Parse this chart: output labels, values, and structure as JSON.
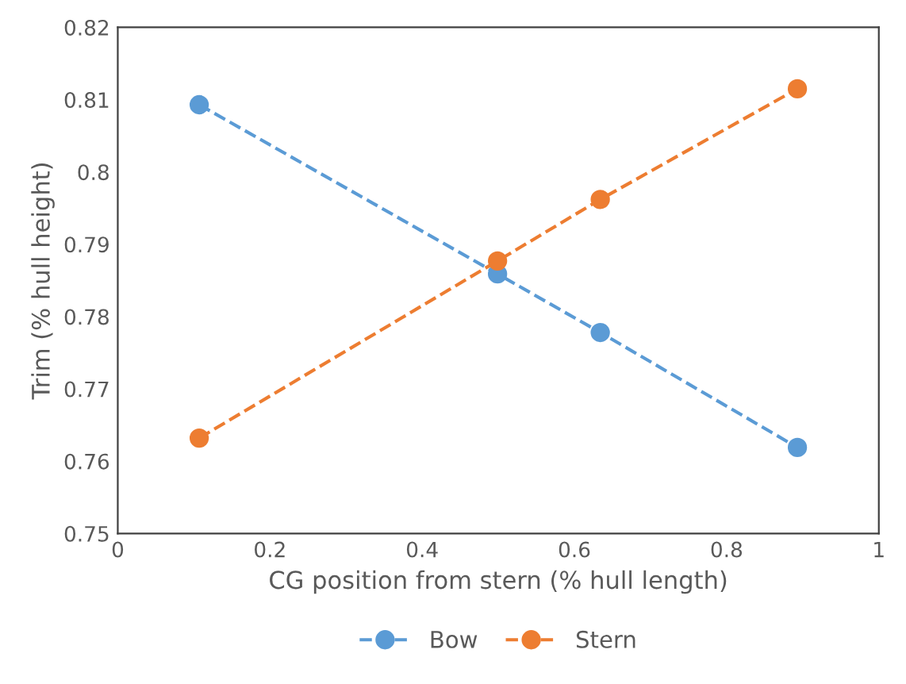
{
  "chart_data": {
    "type": "line",
    "xlabel": "CG position from stern (% hull length)",
    "ylabel": "Trim (% hull height)",
    "series": [
      {
        "name": "Bow",
        "color": "#5b9bd5",
        "x": [
          0.107,
          0.499,
          0.634,
          0.893
        ],
        "values": [
          0.8093,
          0.7859,
          0.7778,
          0.7619
        ]
      },
      {
        "name": "Stern",
        "color": "#ed7d31",
        "x": [
          0.107,
          0.499,
          0.634,
          0.893
        ],
        "values": [
          0.7632,
          0.7877,
          0.7962,
          0.8115
        ]
      }
    ],
    "xlim": [
      0,
      1
    ],
    "xticks": [
      0,
      0.2,
      0.4,
      0.6,
      0.8,
      1
    ],
    "ylim": [
      0.75,
      0.82
    ],
    "yticks": [
      0.75,
      0.76,
      0.77,
      0.78,
      0.79,
      0.8,
      0.81,
      0.82
    ],
    "grid": false,
    "legend": "bottom",
    "marker": "circle",
    "line_style": "dashed"
  }
}
